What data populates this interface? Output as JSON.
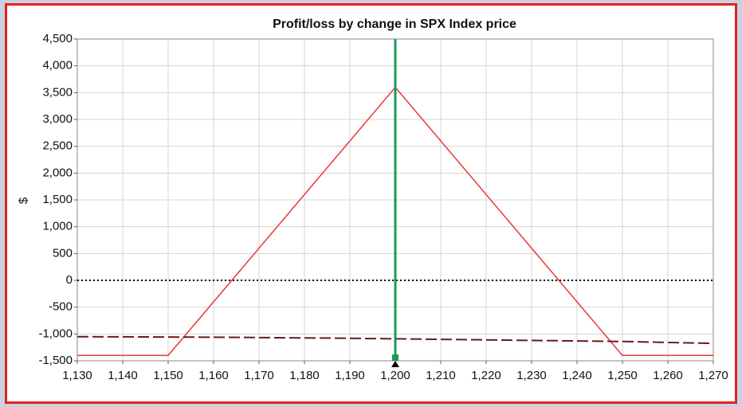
{
  "chart_data": {
    "type": "line",
    "title": "Profit/loss by change in SPX Index price",
    "y_label": "$",
    "xlim": [
      1130,
      1270
    ],
    "xticks": [
      {
        "value": 1130,
        "label": "1,130"
      },
      {
        "value": 1140,
        "label": "1,140"
      },
      {
        "value": 1150,
        "label": "1,150"
      },
      {
        "value": 1160,
        "label": "1,160"
      },
      {
        "value": 1170,
        "label": "1,170"
      },
      {
        "value": 1180,
        "label": "1,180"
      },
      {
        "value": 1190,
        "label": "1,190"
      },
      {
        "value": 1200,
        "label": "1,200"
      },
      {
        "value": 1210,
        "label": "1,210"
      },
      {
        "value": 1220,
        "label": "1,220"
      },
      {
        "value": 1230,
        "label": "1,230"
      },
      {
        "value": 1240,
        "label": "1,240"
      },
      {
        "value": 1250,
        "label": "1,250"
      },
      {
        "value": 1260,
        "label": "1,260"
      },
      {
        "value": 1270,
        "label": "1,270"
      }
    ],
    "ylim": [
      -1500,
      4500
    ],
    "yticks": [
      {
        "value": -1500,
        "label": "-1,500"
      },
      {
        "value": -1000,
        "label": "-1,000"
      },
      -500,
      0,
      500,
      {
        "value": 1000,
        "label": "1,000"
      },
      {
        "value": 1500,
        "label": "1,500"
      },
      {
        "value": 2000,
        "label": "2,000"
      },
      {
        "value": 2500,
        "label": "2,500"
      },
      {
        "value": 3000,
        "label": "3,000"
      },
      {
        "value": 3500,
        "label": "3,500"
      },
      {
        "value": 4000,
        "label": "4,000"
      },
      {
        "value": 4500,
        "label": "4,500"
      }
    ],
    "grid": true,
    "series": [
      {
        "color": "#e8383a",
        "dash": "solid",
        "x": [
          1130,
          1150,
          1200,
          1250,
          1270
        ],
        "values": [
          -1400,
          -1400,
          3600,
          -1400,
          -1400
        ]
      },
      {
        "color": "#6b1a1a",
        "dash": "dashed",
        "x": [
          1130,
          1160,
          1190,
          1220,
          1250,
          1270
        ],
        "values": [
          -1050,
          -1060,
          -1080,
          -1110,
          -1140,
          -1175
        ]
      }
    ],
    "reference_line": {
      "y": 0,
      "color": "#000000",
      "dash": "dotted"
    },
    "marker_line": {
      "x": 1200,
      "color": "#1a9a5a"
    }
  }
}
